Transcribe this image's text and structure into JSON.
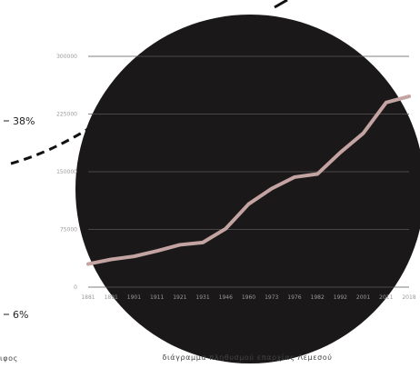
{
  "side": {
    "pct_top": "38%",
    "pct_bottom": "6%",
    "bottom_fragment": "ιφος"
  },
  "colors": {
    "disc": "#1a1819",
    "line": "#c4a4a2",
    "grid": "#5a5758",
    "text": "#9a9a9a"
  },
  "chart_data": {
    "type": "line",
    "title": "διάγραμμα πληθυσμού επαρχίας Λεμεσού",
    "xlabel": "",
    "ylabel": "",
    "ylim": [
      0,
      300000
    ],
    "yticks": [
      0,
      75000,
      150000,
      225000,
      300000
    ],
    "ytick_labels": [
      "0",
      "75000",
      "150000",
      "225000",
      "300000"
    ],
    "grid": true,
    "categories": [
      "1881",
      "1891",
      "1901",
      "1911",
      "1921",
      "1931",
      "1946",
      "1960",
      "1973",
      "1976",
      "1982",
      "1992",
      "2001",
      "2011",
      "2018"
    ],
    "values": [
      30000,
      36000,
      40000,
      47000,
      55000,
      58000,
      76000,
      108000,
      128000,
      143000,
      147000,
      175000,
      200000,
      240000,
      248000
    ]
  }
}
